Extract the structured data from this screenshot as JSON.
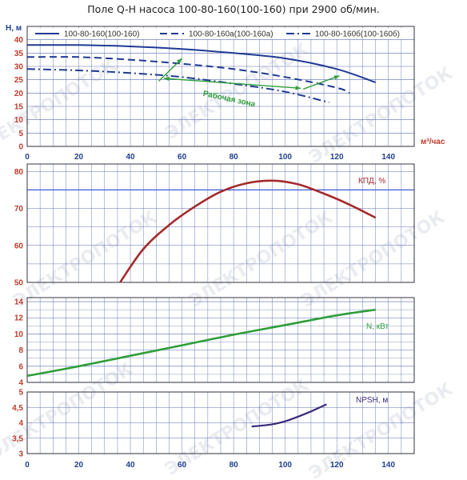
{
  "title": "Поле Q-H насоса 100-80-160(100-160) при 2900 об/мин.",
  "colors": {
    "tick_red": "#c0392b",
    "tick_blue": "#1f3f8f",
    "grid": "#5a6fb0",
    "grid_dark": "#222233",
    "qh_curve": "#1f3a93",
    "efficiency_curve": "#a52a2a",
    "power_curve": "#2e9e3a",
    "npsh_curve": "#3a2a7a",
    "zone": "#2e9e3a",
    "eff_ref_line": "#3b5bdb",
    "watermark": "#d9dde6"
  },
  "watermark_text": "ЭЛЕКТРОПОТОК",
  "chart_data": [
    {
      "id": "qh",
      "type": "line",
      "xlabel": "м³/час",
      "ylabel": "H, м",
      "xlim": [
        0,
        150
      ],
      "ylim": [
        0,
        45
      ],
      "x_ticks": [
        0,
        20,
        40,
        60,
        80,
        100,
        120,
        140
      ],
      "y_ticks": [
        0,
        5,
        10,
        15,
        20,
        25,
        30,
        35,
        40
      ],
      "grid": true,
      "legend_position": "top",
      "series": [
        {
          "name": "100-80-160(100-160)",
          "style": "solid",
          "x": [
            0,
            20,
            40,
            60,
            80,
            100,
            120,
            135
          ],
          "y": [
            38,
            38,
            37.5,
            36.5,
            35,
            33,
            29,
            24
          ]
        },
        {
          "name": "100-80-160а(100-160а)",
          "style": "dashed",
          "x": [
            0,
            20,
            40,
            60,
            80,
            100,
            120,
            125
          ],
          "y": [
            33.5,
            33.5,
            32.5,
            31,
            29,
            26,
            22,
            20
          ]
        },
        {
          "name": "100-80-160б(100-160б)",
          "style": "dashdot",
          "x": [
            0,
            20,
            40,
            60,
            80,
            100,
            117
          ],
          "y": [
            29,
            28.5,
            27.5,
            26,
            23.5,
            20.5,
            16.5
          ]
        }
      ],
      "zone": {
        "label": "Рабочая зона",
        "left_edge": [
          [
            51,
            24.5
          ],
          [
            60,
            33
          ]
        ],
        "right_edge": [
          [
            107,
            21.5
          ],
          [
            121,
            26.5
          ]
        ],
        "arrow_start": [
          53,
          25.5
        ],
        "arrow_end": [
          106,
          21.8
        ]
      }
    },
    {
      "id": "efficiency",
      "type": "line",
      "label": "КПД, %",
      "xlim": [
        0,
        150
      ],
      "ylim": [
        50,
        82
      ],
      "x_ticks": [
        0,
        20,
        40,
        60,
        80,
        100,
        120,
        140
      ],
      "y_ticks": [
        50,
        60,
        70,
        80
      ],
      "grid": true,
      "reference_y": 75,
      "series": [
        {
          "name": "КПД, %",
          "x": [
            36,
            45,
            55,
            65,
            75,
            85,
            95,
            105,
            115,
            125,
            135
          ],
          "y": [
            50,
            59,
            65.5,
            70.5,
            74.5,
            76.8,
            77.5,
            76.5,
            74,
            71,
            67.5
          ]
        }
      ]
    },
    {
      "id": "power",
      "type": "line",
      "label": "N, кВт",
      "xlim": [
        0,
        150
      ],
      "ylim": [
        4,
        14.5
      ],
      "x_ticks": [
        0,
        20,
        40,
        60,
        80,
        100,
        120,
        140
      ],
      "y_ticks": [
        4,
        6,
        8,
        10,
        12,
        14
      ],
      "grid": true,
      "series": [
        {
          "name": "N, кВт",
          "x": [
            0,
            20,
            40,
            60,
            80,
            100,
            120,
            135
          ],
          "y": [
            4.8,
            6.0,
            7.3,
            8.6,
            9.9,
            11.1,
            12.3,
            13.0
          ]
        }
      ]
    },
    {
      "id": "npsh",
      "type": "line",
      "label": "NPSH, м",
      "xlim": [
        0,
        150
      ],
      "ylim": [
        3,
        5
      ],
      "x_ticks": [
        0,
        20,
        40,
        60,
        80,
        100,
        120,
        140
      ],
      "y_ticks": [
        3,
        3.5,
        4,
        4.5,
        5
      ],
      "y_tick_labels": [
        "3",
        "3,5",
        "4",
        "4,5",
        "5"
      ],
      "grid": true,
      "series": [
        {
          "name": "NPSH, м",
          "x": [
            87,
            95,
            100,
            105,
            110,
            116
          ],
          "y": [
            3.88,
            3.95,
            4.05,
            4.2,
            4.37,
            4.6
          ]
        }
      ]
    }
  ]
}
